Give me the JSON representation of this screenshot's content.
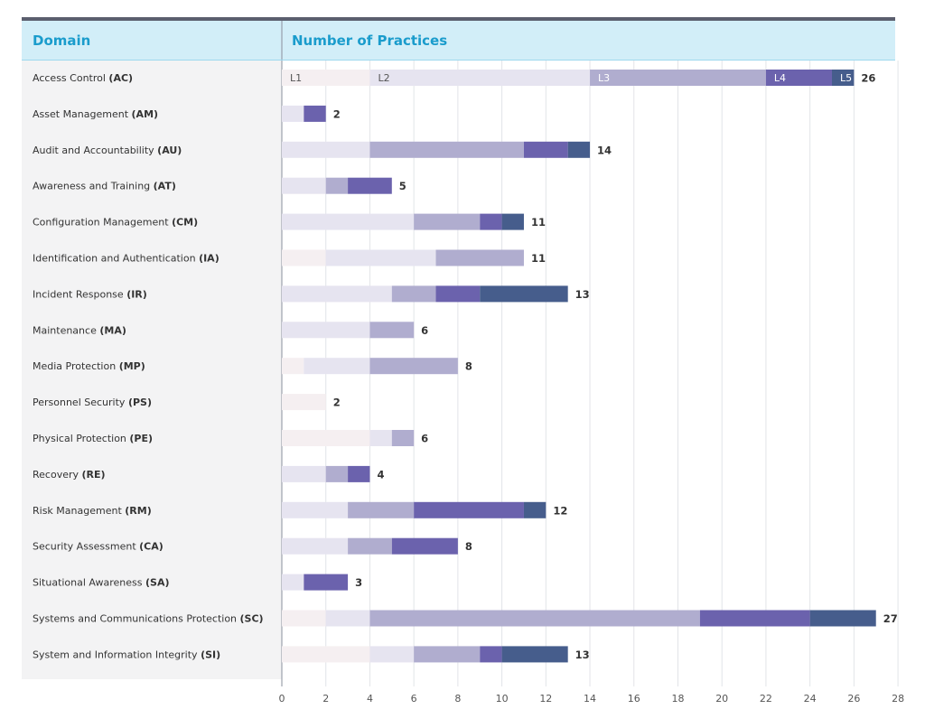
{
  "header": {
    "domain_col": "Domain",
    "practices_col": "Number of Practices"
  },
  "colors": {
    "header_bg": "#d2eef8",
    "header_text": "#1a9ccc",
    "label_col_bg": "#f3f3f4",
    "top_rule": "#5b5f6e",
    "levels": [
      "#f5eff1",
      "#e6e4f0",
      "#b0adcf",
      "#6b62ad",
      "#465d8c"
    ]
  },
  "chart_data": {
    "type": "bar",
    "orientation": "horizontal",
    "stacked": true,
    "xlabel": "",
    "ylabel": "Domain",
    "xlim": [
      0,
      28
    ],
    "xticks": [
      0,
      2,
      4,
      6,
      8,
      10,
      12,
      14,
      16,
      18,
      20,
      22,
      24,
      26,
      28
    ],
    "segment_labels_row": 0,
    "series": [
      {
        "name": "L1",
        "values": [
          4,
          0,
          0,
          0,
          0,
          2,
          0,
          0,
          1,
          2,
          4,
          0,
          0,
          0,
          0,
          2,
          4
        ]
      },
      {
        "name": "L2",
        "values": [
          10,
          1,
          4,
          2,
          6,
          5,
          5,
          4,
          3,
          0,
          1,
          2,
          3,
          3,
          1,
          2,
          2
        ]
      },
      {
        "name": "L3",
        "values": [
          8,
          0,
          7,
          1,
          3,
          4,
          2,
          2,
          4,
          0,
          1,
          1,
          3,
          2,
          0,
          15,
          3
        ]
      },
      {
        "name": "L4",
        "values": [
          3,
          1,
          2,
          2,
          1,
          0,
          2,
          0,
          0,
          0,
          0,
          1,
          5,
          3,
          2,
          5,
          1
        ]
      },
      {
        "name": "L5",
        "values": [
          1,
          0,
          1,
          0,
          1,
          0,
          4,
          0,
          0,
          0,
          0,
          0,
          1,
          0,
          0,
          3,
          3
        ]
      }
    ],
    "categories": [
      {
        "name": "Access Control",
        "code": "(AC)",
        "total": "26"
      },
      {
        "name": "Asset Management",
        "code": "(AM)",
        "total": "2"
      },
      {
        "name": "Audit and Accountability",
        "code": "(AU)",
        "total": "14"
      },
      {
        "name": "Awareness and Training",
        "code": "(AT)",
        "total": "5"
      },
      {
        "name": "Configuration Management",
        "code": "(CM)",
        "total": "11"
      },
      {
        "name": "Identification and Authentication",
        "code": "(IA)",
        "total": "11"
      },
      {
        "name": "Incident Response",
        "code": "(IR)",
        "total": "13"
      },
      {
        "name": "Maintenance",
        "code": "(MA)",
        "total": "6"
      },
      {
        "name": "Media Protection",
        "code": "(MP)",
        "total": "8"
      },
      {
        "name": "Personnel Security",
        "code": "(PS)",
        "total": "2"
      },
      {
        "name": "Physical Protection",
        "code": "(PE)",
        "total": "6"
      },
      {
        "name": "Recovery",
        "code": "(RE)",
        "total": "4"
      },
      {
        "name": "Risk Management",
        "code": "(RM)",
        "total": "12"
      },
      {
        "name": "Security Assessment",
        "code": "(CA)",
        "total": "8"
      },
      {
        "name": "Situational Awareness",
        "code": "(SA)",
        "total": "3"
      },
      {
        "name": "Systems and Communications Protection",
        "code": "(SC)",
        "total": "27"
      },
      {
        "name": "System and Information Integrity",
        "code": "(SI)",
        "total": "13"
      }
    ]
  }
}
